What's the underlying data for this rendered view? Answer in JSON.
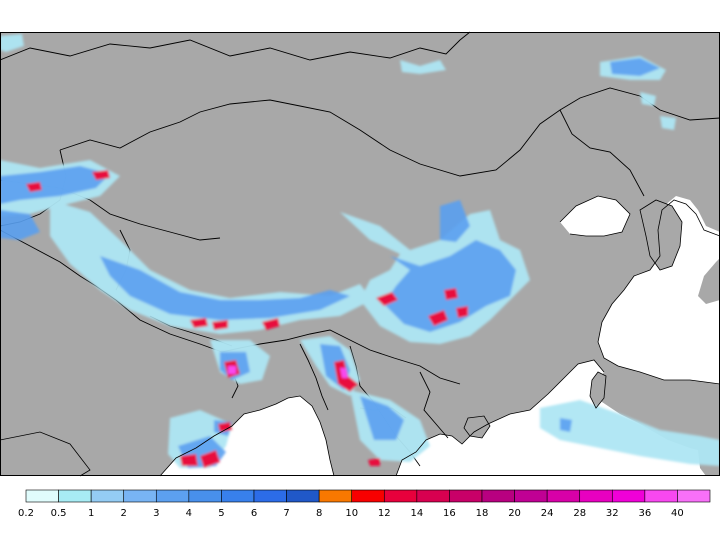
{
  "map": {
    "ocean_color": "#ffffff",
    "land_color": "#a8a8a8",
    "border_color": "#000000",
    "precip_light_color": "#aee6f4",
    "precip_medium_color": "#5aa0f0",
    "precip_heavy_color": "#e8103c"
  },
  "legend": {
    "labels": [
      "0.2",
      "0.5",
      "1",
      "2",
      "3",
      "4",
      "5",
      "6",
      "7",
      "8",
      "10",
      "12",
      "14",
      "16",
      "18",
      "20",
      "24",
      "28",
      "32",
      "36",
      "40"
    ],
    "colors": [
      "#e0fcfc",
      "#a8ecf4",
      "#94ccf4",
      "#78b4f4",
      "#5ca0f0",
      "#4890ec",
      "#3880ec",
      "#2c6ce8",
      "#2058c8",
      "#f87800",
      "#f80000",
      "#e8003c",
      "#d80050",
      "#c80068",
      "#b80080",
      "#c00094",
      "#d800a8",
      "#e800c0",
      "#f000d8",
      "#f848f0",
      "#f870f8"
    ]
  }
}
